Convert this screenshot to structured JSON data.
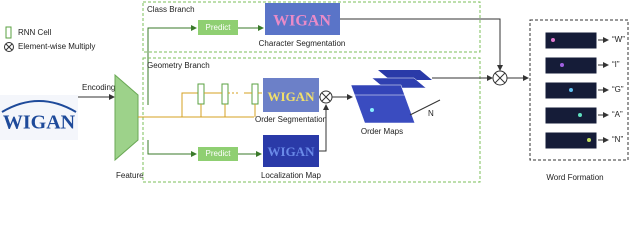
{
  "legend": {
    "rnn_cell": "RNN Cell",
    "multiply": "Element-wise Multiply"
  },
  "input": {
    "image_text": "WIGAN",
    "encoding": "Encoding",
    "feature": "Feature"
  },
  "class_branch": {
    "title": "Class Branch",
    "predict": "Predict",
    "output": "Character Segmentation"
  },
  "geometry_branch": {
    "title": "Geometry Branch",
    "order_output": "Order Segmentation",
    "order_maps": "Order Maps",
    "n": "N",
    "predict": "Predict",
    "localization": "Localization Map"
  },
  "word_formation": {
    "title": "Word Formation",
    "characters": [
      "“W”",
      "“I”",
      "“G”",
      "“A”",
      "“N”"
    ]
  }
}
